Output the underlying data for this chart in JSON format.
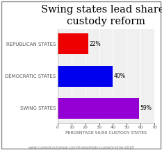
{
  "title": "Swing states lead shared\ncustody reform",
  "categories": [
    "SWING STATES",
    "DEMOCRATIC STATES",
    "REPUBLICAN STATES"
  ],
  "values": [
    59,
    40,
    22
  ],
  "bar_colors": [
    "#9400D3",
    "#0000EE",
    "#EE0000"
  ],
  "bar_labels": [
    "59%",
    "40%",
    "22%"
  ],
  "xlabel": "PERCENTAGE 50/50 CUSTODY STATES",
  "xlim": [
    0,
    70
  ],
  "xticks": [
    0,
    10,
    20,
    30,
    40,
    50,
    60,
    70
  ],
  "footnote": "www.custodyxchange.com/maps/dads-custody-time-2018",
  "background_color": "#FFFFFF",
  "plot_bg_color": "#F0F0F0",
  "title_fontsize": 10.5,
  "label_fontsize": 5,
  "tick_fontsize": 4.5,
  "xlabel_fontsize": 4.5,
  "footnote_fontsize": 3.8,
  "bar_label_fontsize": 5.5
}
